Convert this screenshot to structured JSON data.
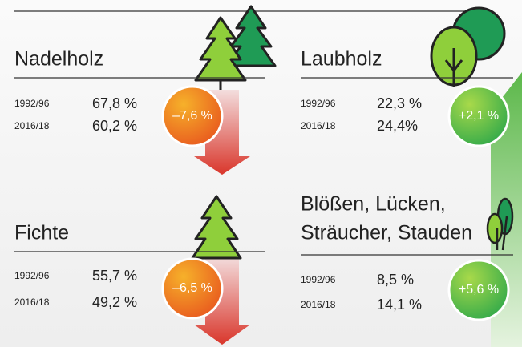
{
  "panels": [
    {
      "title_lines": [
        "Nadelholz"
      ],
      "rows": [
        [
          "1992/96",
          "67,8 %"
        ],
        [
          "2016/18",
          "60,2 %"
        ]
      ],
      "change": "–7,6 %"
    },
    {
      "title_lines": [
        "Laubholz"
      ],
      "rows": [
        [
          "1992/96",
          "22,3 %"
        ],
        [
          "2016/18",
          "24,4%"
        ]
      ],
      "change": "+2,1 %"
    },
    {
      "title_lines": [
        "Fichte"
      ],
      "rows": [
        [
          "1992/96",
          "55,7 %"
        ],
        [
          "2016/18",
          "49,2 %"
        ]
      ],
      "change": "–6,5 %"
    },
    {
      "title_lines": [
        "Blößen, Lücken,",
        "Sträucher, Stauden"
      ],
      "rows": [
        [
          "1992/96",
          "8,5 %"
        ],
        [
          "2016/18",
          "14,1 %"
        ]
      ],
      "change": "+5,6 %"
    }
  ]
}
